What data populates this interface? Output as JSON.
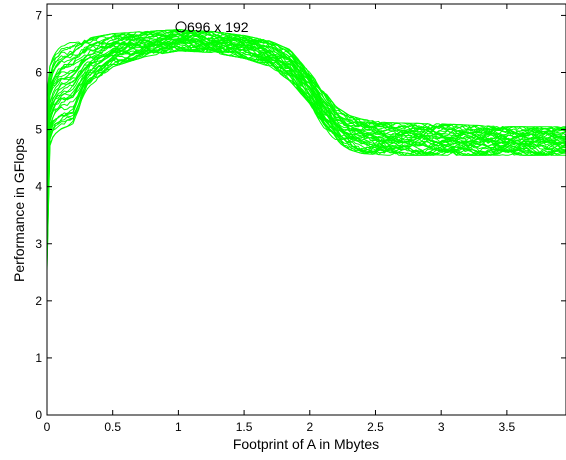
{
  "chart_data": {
    "type": "line",
    "title": "",
    "xlabel": "Footprint of A in Mbytes",
    "ylabel": "Performance in GFlops",
    "xlim": [
      0,
      3.95
    ],
    "ylim": [
      0,
      7.2
    ],
    "xticks": [
      0,
      0.5,
      1,
      1.5,
      2,
      2.5,
      3,
      3.5
    ],
    "yticks": [
      0,
      1,
      2,
      3,
      4,
      5,
      6,
      7
    ],
    "xtick_labels": [
      "0",
      "0.5",
      "1",
      "1.5",
      "2",
      "2.5",
      "3",
      "3.5"
    ],
    "ytick_labels": [
      "0",
      "1",
      "2",
      "3",
      "4",
      "5",
      "6",
      "7"
    ],
    "grid": false,
    "legend": "none",
    "line_color": "#00ff00",
    "annotation": {
      "text": "696 x 192",
      "x": 1.02,
      "y": 6.8,
      "marker": "circle"
    },
    "envelope": {
      "x": [
        0.0,
        0.02,
        0.05,
        0.1,
        0.15,
        0.2,
        0.3,
        0.5,
        0.75,
        1.0,
        1.25,
        1.5,
        1.7,
        1.85,
        2.0,
        2.1,
        2.2,
        2.3,
        2.4,
        2.6,
        3.0,
        3.5,
        3.95
      ],
      "upper": [
        5.6,
        6.1,
        6.3,
        6.45,
        6.5,
        6.55,
        6.6,
        6.68,
        6.72,
        6.75,
        6.72,
        6.65,
        6.55,
        6.4,
        6.0,
        5.7,
        5.4,
        5.25,
        5.18,
        5.12,
        5.1,
        5.05,
        5.05
      ],
      "lower": [
        2.5,
        4.7,
        4.9,
        5.0,
        5.05,
        5.1,
        5.7,
        6.1,
        6.28,
        6.38,
        6.35,
        6.25,
        6.1,
        5.85,
        5.45,
        5.05,
        4.8,
        4.65,
        4.58,
        4.55,
        4.55,
        4.55,
        4.55
      ]
    },
    "series_count": 40
  }
}
